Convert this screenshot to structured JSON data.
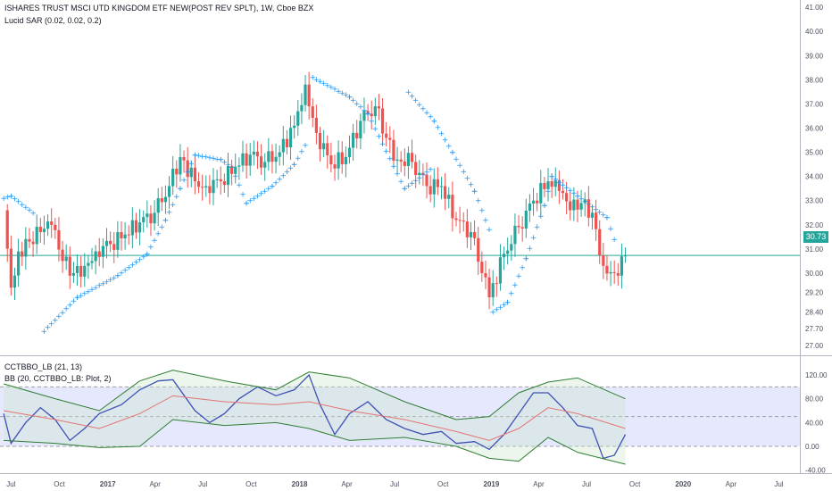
{
  "header": {
    "title": "ISHARES TRUST MSCI UTD KINGDOM ETF NEW(POST REV SPLT), 1W, Cboe BZX",
    "sar_label": "Lucid SAR (0.02, 0.02, 0.2)",
    "osc_label": "CCTBBO_LB (21, 13)",
    "bb_label": "BB (20, CCTBBO_LB: Plot, 2)"
  },
  "last_price": "30.73",
  "colors": {
    "up": "#26a69a",
    "down": "#ef5350",
    "sar": "#2196f3",
    "osc": "#3f51b5",
    "bb_basis": "#e57373",
    "bb_band": "#2e7d32",
    "band_fill": "#e0e3fc",
    "price_line": "#26a69a"
  },
  "chart_data": [
    {
      "type": "candlestick",
      "title": "ISHARES TRUST MSCI UTD KINGDOM ETF NEW(POST REV SPLT), 1W, Cboe BZX",
      "y_ticks": [
        "41.00",
        "40.00",
        "39.00",
        "38.00",
        "37.00",
        "36.00",
        "35.00",
        "34.00",
        "33.00",
        "32.00",
        "31.00",
        "30.00",
        "29.20",
        "28.40",
        "27.70",
        "27.00"
      ],
      "x_ticks": [
        "Jul",
        "Oct",
        "2017",
        "Apr",
        "Jul",
        "Oct",
        "2018",
        "Apr",
        "Jul",
        "Oct",
        "2019",
        "Apr",
        "Jul",
        "Oct",
        "2020",
        "Apr",
        "Jul"
      ],
      "ylim": [
        26.6,
        41.3
      ],
      "last_value": 30.73,
      "close_series": [
        {
          "x": "2016-06-17",
          "close": 32.6
        },
        {
          "x": "2016-07-01",
          "close": 29.4
        },
        {
          "x": "2016-07-15",
          "close": 30.9
        },
        {
          "x": "2016-08-05",
          "close": 31.3
        },
        {
          "x": "2016-08-26",
          "close": 31.7
        },
        {
          "x": "2016-09-16",
          "close": 32.0
        },
        {
          "x": "2016-10-07",
          "close": 30.5
        },
        {
          "x": "2016-10-28",
          "close": 30.0
        },
        {
          "x": "2016-11-18",
          "close": 30.3
        },
        {
          "x": "2016-12-09",
          "close": 30.9
        },
        {
          "x": "2017-01-06",
          "close": 31.2
        },
        {
          "x": "2017-02-03",
          "close": 31.6
        },
        {
          "x": "2017-03-03",
          "close": 32.1
        },
        {
          "x": "2017-03-31",
          "close": 32.5
        },
        {
          "x": "2017-04-28",
          "close": 33.6
        },
        {
          "x": "2017-05-19",
          "close": 34.8
        },
        {
          "x": "2017-06-16",
          "close": 33.8
        },
        {
          "x": "2017-07-07",
          "close": 33.6
        },
        {
          "x": "2017-08-04",
          "close": 33.8
        },
        {
          "x": "2017-09-01",
          "close": 34.4
        },
        {
          "x": "2017-09-29",
          "close": 34.9
        },
        {
          "x": "2017-10-27",
          "close": 34.6
        },
        {
          "x": "2017-11-24",
          "close": 35.0
        },
        {
          "x": "2017-12-22",
          "close": 36.1
        },
        {
          "x": "2018-01-12",
          "close": 37.8
        },
        {
          "x": "2018-02-02",
          "close": 35.8
        },
        {
          "x": "2018-03-02",
          "close": 34.5
        },
        {
          "x": "2018-03-30",
          "close": 34.8
        },
        {
          "x": "2018-04-27",
          "close": 36.3
        },
        {
          "x": "2018-05-25",
          "close": 36.9
        },
        {
          "x": "2018-06-15",
          "close": 35.6
        },
        {
          "x": "2018-07-06",
          "close": 34.7
        },
        {
          "x": "2018-08-03",
          "close": 34.6
        },
        {
          "x": "2018-08-31",
          "close": 33.6
        },
        {
          "x": "2018-09-28",
          "close": 33.6
        },
        {
          "x": "2018-10-26",
          "close": 32.2
        },
        {
          "x": "2018-11-23",
          "close": 31.7
        },
        {
          "x": "2018-12-14",
          "close": 30.0
        },
        {
          "x": "2018-12-28",
          "close": 29.0
        },
        {
          "x": "2019-01-25",
          "close": 30.8
        },
        {
          "x": "2019-02-22",
          "close": 31.9
        },
        {
          "x": "2019-03-22",
          "close": 33.0
        },
        {
          "x": "2019-04-19",
          "close": 33.8
        },
        {
          "x": "2019-05-10",
          "close": 33.4
        },
        {
          "x": "2019-05-31",
          "close": 32.6
        },
        {
          "x": "2019-06-21",
          "close": 32.9
        },
        {
          "x": "2019-07-12",
          "close": 32.5
        },
        {
          "x": "2019-08-02",
          "close": 30.3
        },
        {
          "x": "2019-08-23",
          "close": 30.0
        },
        {
          "x": "2019-09-13",
          "close": 30.73
        }
      ],
      "sar_series": [
        {
          "x": "2016-06-17",
          "y": 33.1
        },
        {
          "x": "2016-07-01",
          "y": 33.2
        },
        {
          "x": "2016-08-12",
          "y": 32.5
        },
        {
          "x": "2016-09-02",
          "y": 27.6
        },
        {
          "x": "2016-11-04",
          "y": 29.0
        },
        {
          "x": "2017-01-20",
          "y": 29.9
        },
        {
          "x": "2017-03-17",
          "y": 30.8
        },
        {
          "x": "2017-04-21",
          "y": 32.2
        },
        {
          "x": "2017-05-19",
          "y": 33.5
        },
        {
          "x": "2017-06-16",
          "y": 34.9
        },
        {
          "x": "2017-08-04",
          "y": 34.7
        },
        {
          "x": "2017-08-25",
          "y": 34.4
        },
        {
          "x": "2017-09-22",
          "y": 32.9
        },
        {
          "x": "2017-11-10",
          "y": 33.6
        },
        {
          "x": "2017-12-22",
          "y": 34.5
        },
        {
          "x": "2018-01-12",
          "y": 35.3
        },
        {
          "x": "2018-01-26",
          "y": 38.1
        },
        {
          "x": "2018-04-06",
          "y": 37.3
        },
        {
          "x": "2018-05-11",
          "y": 36.6
        },
        {
          "x": "2018-07-20",
          "y": 33.5
        },
        {
          "x": "2018-09-07",
          "y": 34.3
        },
        {
          "x": "2018-07-27",
          "y": 37.5
        },
        {
          "x": "2018-09-14",
          "y": 36.3
        },
        {
          "x": "2018-10-19",
          "y": 35.0
        },
        {
          "x": "2018-11-30",
          "y": 33.4
        },
        {
          "x": "2018-12-28",
          "y": 31.8
        },
        {
          "x": "2019-01-04",
          "y": 28.4
        },
        {
          "x": "2019-02-01",
          "y": 28.8
        },
        {
          "x": "2019-03-08",
          "y": 30.6
        },
        {
          "x": "2019-04-12",
          "y": 32.8
        },
        {
          "x": "2019-04-26",
          "y": 34.0
        },
        {
          "x": "2019-06-14",
          "y": 33.2
        },
        {
          "x": "2019-08-09",
          "y": 32.3
        },
        {
          "x": "2019-08-23",
          "y": 31.4
        }
      ]
    },
    {
      "type": "line",
      "title": "CCTBBO_LB (21, 13)",
      "y_ticks": [
        "120.00",
        "80.00",
        "40.00",
        "0.00",
        "-40.00"
      ],
      "ylim": [
        -45,
        150
      ],
      "hlines": [
        100,
        50,
        0
      ],
      "series": [
        {
          "name": "CCTBBO_LB",
          "points": [
            {
              "x": "2016-06-17",
              "y": 55
            },
            {
              "x": "2016-07-01",
              "y": 5
            },
            {
              "x": "2016-07-29",
              "y": 40
            },
            {
              "x": "2016-08-26",
              "y": 65
            },
            {
              "x": "2016-09-23",
              "y": 45
            },
            {
              "x": "2016-10-21",
              "y": 10
            },
            {
              "x": "2016-11-18",
              "y": 30
            },
            {
              "x": "2016-12-16",
              "y": 55
            },
            {
              "x": "2017-01-27",
              "y": 70
            },
            {
              "x": "2017-03-03",
              "y": 95
            },
            {
              "x": "2017-04-07",
              "y": 110
            },
            {
              "x": "2017-05-05",
              "y": 112
            },
            {
              "x": "2017-06-16",
              "y": 60
            },
            {
              "x": "2017-07-14",
              "y": 40
            },
            {
              "x": "2017-08-11",
              "y": 55
            },
            {
              "x": "2017-09-08",
              "y": 80
            },
            {
              "x": "2017-10-13",
              "y": 100
            },
            {
              "x": "2017-11-17",
              "y": 85
            },
            {
              "x": "2017-12-22",
              "y": 95
            },
            {
              "x": "2018-01-19",
              "y": 120
            },
            {
              "x": "2018-02-09",
              "y": 70
            },
            {
              "x": "2018-03-09",
              "y": 20
            },
            {
              "x": "2018-04-06",
              "y": 55
            },
            {
              "x": "2018-05-11",
              "y": 75
            },
            {
              "x": "2018-06-15",
              "y": 45
            },
            {
              "x": "2018-07-20",
              "y": 30
            },
            {
              "x": "2018-08-24",
              "y": 20
            },
            {
              "x": "2018-09-28",
              "y": 25
            },
            {
              "x": "2018-10-26",
              "y": 5
            },
            {
              "x": "2018-11-30",
              "y": 8
            },
            {
              "x": "2018-12-28",
              "y": -5
            },
            {
              "x": "2019-01-25",
              "y": 20
            },
            {
              "x": "2019-02-22",
              "y": 55
            },
            {
              "x": "2019-03-22",
              "y": 90
            },
            {
              "x": "2019-04-19",
              "y": 90
            },
            {
              "x": "2019-05-17",
              "y": 65
            },
            {
              "x": "2019-06-14",
              "y": 35
            },
            {
              "x": "2019-07-12",
              "y": 30
            },
            {
              "x": "2019-08-02",
              "y": -20
            },
            {
              "x": "2019-08-23",
              "y": -15
            },
            {
              "x": "2019-09-13",
              "y": 20
            }
          ]
        },
        {
          "name": "BB basis",
          "points": [
            {
              "x": "2016-06-17",
              "y": 60
            },
            {
              "x": "2016-09-23",
              "y": 45
            },
            {
              "x": "2016-12-16",
              "y": 30
            },
            {
              "x": "2017-03-03",
              "y": 55
            },
            {
              "x": "2017-05-05",
              "y": 85
            },
            {
              "x": "2017-08-11",
              "y": 75
            },
            {
              "x": "2017-11-17",
              "y": 70
            },
            {
              "x": "2018-01-19",
              "y": 75
            },
            {
              "x": "2018-04-06",
              "y": 60
            },
            {
              "x": "2018-07-20",
              "y": 45
            },
            {
              "x": "2018-10-26",
              "y": 25
            },
            {
              "x": "2018-12-28",
              "y": 10
            },
            {
              "x": "2019-02-22",
              "y": 30
            },
            {
              "x": "2019-04-19",
              "y": 65
            },
            {
              "x": "2019-06-14",
              "y": 55
            },
            {
              "x": "2019-09-13",
              "y": 30
            }
          ]
        },
        {
          "name": "BB upper",
          "points": [
            {
              "x": "2016-06-17",
              "y": 105
            },
            {
              "x": "2016-09-23",
              "y": 80
            },
            {
              "x": "2016-12-16",
              "y": 60
            },
            {
              "x": "2017-03-03",
              "y": 110
            },
            {
              "x": "2017-05-05",
              "y": 128
            },
            {
              "x": "2017-08-11",
              "y": 110
            },
            {
              "x": "2017-11-17",
              "y": 95
            },
            {
              "x": "2018-01-19",
              "y": 125
            },
            {
              "x": "2018-04-06",
              "y": 115
            },
            {
              "x": "2018-07-20",
              "y": 75
            },
            {
              "x": "2018-10-26",
              "y": 45
            },
            {
              "x": "2018-12-28",
              "y": 50
            },
            {
              "x": "2019-02-22",
              "y": 90
            },
            {
              "x": "2019-04-19",
              "y": 108
            },
            {
              "x": "2019-06-14",
              "y": 115
            },
            {
              "x": "2019-09-13",
              "y": 80
            }
          ]
        },
        {
          "name": "BB lower",
          "points": [
            {
              "x": "2016-06-17",
              "y": 10
            },
            {
              "x": "2016-09-23",
              "y": 5
            },
            {
              "x": "2016-12-16",
              "y": -2
            },
            {
              "x": "2017-03-03",
              "y": 0
            },
            {
              "x": "2017-05-05",
              "y": 45
            },
            {
              "x": "2017-08-11",
              "y": 35
            },
            {
              "x": "2017-11-17",
              "y": 40
            },
            {
              "x": "2018-01-19",
              "y": 30
            },
            {
              "x": "2018-04-06",
              "y": 10
            },
            {
              "x": "2018-07-20",
              "y": 15
            },
            {
              "x": "2018-10-26",
              "y": 0
            },
            {
              "x": "2018-12-28",
              "y": -20
            },
            {
              "x": "2019-02-22",
              "y": -25
            },
            {
              "x": "2019-04-19",
              "y": 15
            },
            {
              "x": "2019-06-14",
              "y": -10
            },
            {
              "x": "2019-09-13",
              "y": -30
            }
          ]
        }
      ]
    }
  ]
}
